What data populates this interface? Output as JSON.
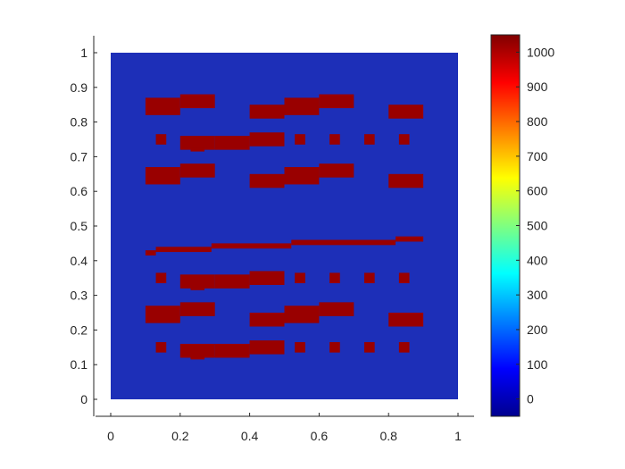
{
  "chart_data": {
    "type": "heatmap",
    "title": "",
    "xlabel": "",
    "ylabel": "",
    "xlim": [
      0,
      1
    ],
    "ylim": [
      0,
      1
    ],
    "x_ticks": [
      "0",
      "0.2",
      "0.4",
      "0.6",
      "0.8",
      "1"
    ],
    "y_ticks": [
      "0",
      "0.1",
      "0.2",
      "0.3",
      "0.4",
      "0.5",
      "0.6",
      "0.7",
      "0.8",
      "0.9",
      "1"
    ],
    "background_value": 0,
    "block_value": 1050,
    "colormap": "jet",
    "colorbar": {
      "range": [
        -50,
        1050
      ],
      "ticks": [
        "0",
        "100",
        "200",
        "300",
        "400",
        "500",
        "600",
        "700",
        "800",
        "900",
        "1000"
      ]
    },
    "colors": {
      "background": "#1d2fb8",
      "block": "#990000",
      "axis": "#262626"
    },
    "blocks": [
      [
        0.1,
        0.2,
        0.82,
        0.87
      ],
      [
        0.2,
        0.3,
        0.84,
        0.88
      ],
      [
        0.4,
        0.5,
        0.81,
        0.85
      ],
      [
        0.5,
        0.6,
        0.82,
        0.87
      ],
      [
        0.6,
        0.7,
        0.84,
        0.88
      ],
      [
        0.8,
        0.9,
        0.81,
        0.85
      ],
      [
        0.13,
        0.16,
        0.735,
        0.765
      ],
      [
        0.2,
        0.3,
        0.72,
        0.76
      ],
      [
        0.23,
        0.27,
        0.715,
        0.725
      ],
      [
        0.3,
        0.4,
        0.72,
        0.76
      ],
      [
        0.4,
        0.5,
        0.73,
        0.77
      ],
      [
        0.53,
        0.56,
        0.735,
        0.765
      ],
      [
        0.63,
        0.66,
        0.735,
        0.765
      ],
      [
        0.73,
        0.76,
        0.735,
        0.765
      ],
      [
        0.83,
        0.86,
        0.735,
        0.765
      ],
      [
        0.1,
        0.2,
        0.62,
        0.67
      ],
      [
        0.2,
        0.3,
        0.64,
        0.68
      ],
      [
        0.4,
        0.5,
        0.61,
        0.65
      ],
      [
        0.5,
        0.6,
        0.62,
        0.67
      ],
      [
        0.6,
        0.7,
        0.64,
        0.68
      ],
      [
        0.8,
        0.9,
        0.61,
        0.65
      ],
      [
        0.1,
        0.13,
        0.415,
        0.43
      ],
      [
        0.13,
        0.29,
        0.425,
        0.44
      ],
      [
        0.29,
        0.52,
        0.435,
        0.45
      ],
      [
        0.52,
        0.82,
        0.445,
        0.46
      ],
      [
        0.82,
        0.9,
        0.455,
        0.47
      ],
      [
        0.13,
        0.16,
        0.335,
        0.365
      ],
      [
        0.2,
        0.3,
        0.32,
        0.36
      ],
      [
        0.23,
        0.27,
        0.315,
        0.325
      ],
      [
        0.3,
        0.4,
        0.32,
        0.36
      ],
      [
        0.4,
        0.5,
        0.33,
        0.37
      ],
      [
        0.53,
        0.56,
        0.335,
        0.365
      ],
      [
        0.63,
        0.66,
        0.335,
        0.365
      ],
      [
        0.73,
        0.76,
        0.335,
        0.365
      ],
      [
        0.83,
        0.86,
        0.335,
        0.365
      ],
      [
        0.1,
        0.2,
        0.22,
        0.27
      ],
      [
        0.2,
        0.3,
        0.24,
        0.28
      ],
      [
        0.4,
        0.5,
        0.21,
        0.25
      ],
      [
        0.5,
        0.6,
        0.22,
        0.27
      ],
      [
        0.6,
        0.7,
        0.24,
        0.28
      ],
      [
        0.8,
        0.9,
        0.21,
        0.25
      ],
      [
        0.13,
        0.16,
        0.135,
        0.165
      ],
      [
        0.2,
        0.3,
        0.12,
        0.16
      ],
      [
        0.23,
        0.27,
        0.115,
        0.125
      ],
      [
        0.3,
        0.4,
        0.12,
        0.16
      ],
      [
        0.4,
        0.5,
        0.13,
        0.17
      ],
      [
        0.53,
        0.56,
        0.135,
        0.165
      ],
      [
        0.63,
        0.66,
        0.135,
        0.165
      ],
      [
        0.73,
        0.76,
        0.135,
        0.165
      ],
      [
        0.83,
        0.86,
        0.135,
        0.165
      ]
    ]
  }
}
